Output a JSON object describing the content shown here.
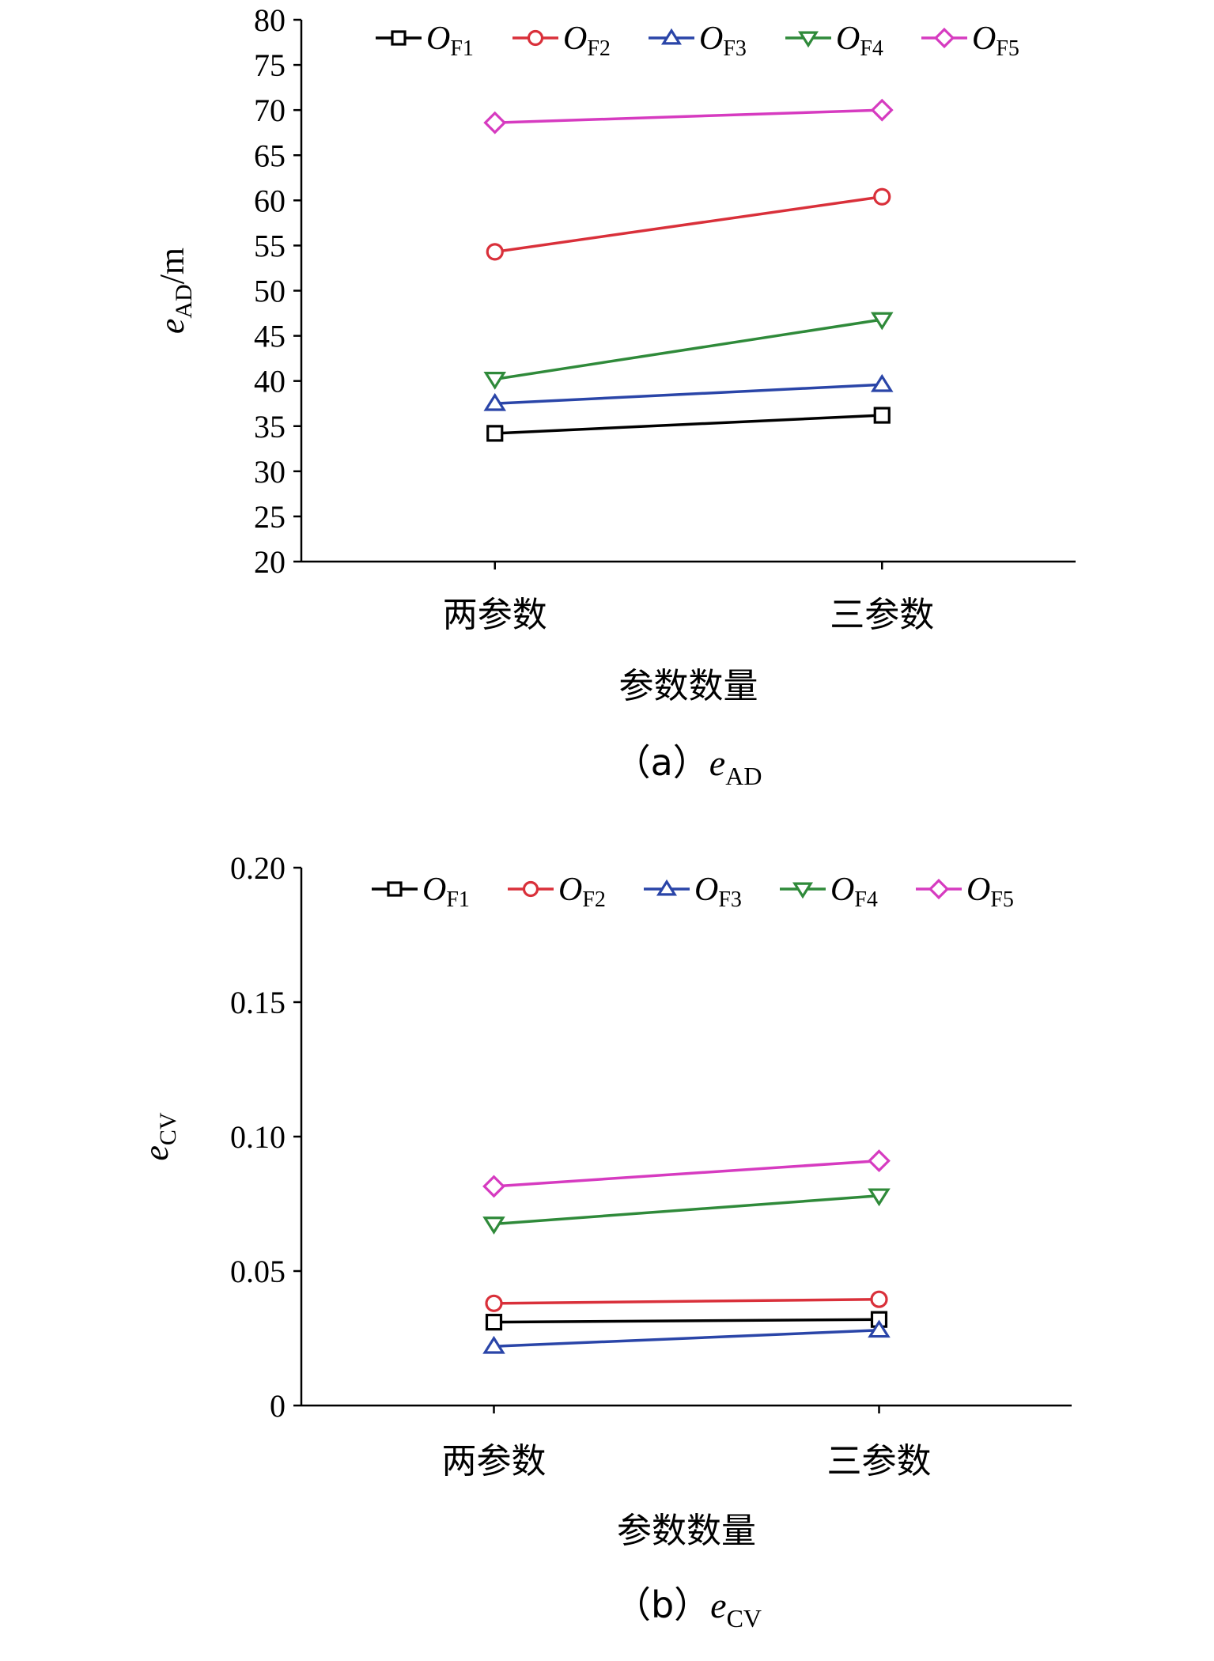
{
  "chart_data": [
    {
      "id": "a",
      "type": "line",
      "caption": {
        "open": "（a）",
        "var": "e",
        "sub": "AD"
      },
      "ylabel": {
        "var": "e",
        "sub": "AD",
        "unit": "/m"
      },
      "xlabel": "参数数量",
      "categories": [
        "两参数",
        "三参数"
      ],
      "ylim": [
        20,
        80
      ],
      "yticks": [
        "20",
        "25",
        "30",
        "35",
        "40",
        "45",
        "50",
        "55",
        "60",
        "65",
        "70",
        "75",
        "80"
      ],
      "legend_position": "top",
      "grid": false,
      "series": [
        {
          "name_var": "O",
          "name_sub": "F1",
          "color": "#000000",
          "marker": "square",
          "values": [
            34.2,
            36.2
          ]
        },
        {
          "name_var": "O",
          "name_sub": "F2",
          "color": "#d9303a",
          "marker": "circle",
          "values": [
            54.3,
            60.4
          ]
        },
        {
          "name_var": "O",
          "name_sub": "F3",
          "color": "#2a45a8",
          "marker": "triangle-up",
          "values": [
            37.5,
            39.6
          ]
        },
        {
          "name_var": "O",
          "name_sub": "F4",
          "color": "#2f8a3a",
          "marker": "triangle-down",
          "values": [
            40.2,
            46.8
          ]
        },
        {
          "name_var": "O",
          "name_sub": "F5",
          "color": "#d63bc0",
          "marker": "diamond",
          "values": [
            68.6,
            70.0
          ]
        }
      ]
    },
    {
      "id": "b",
      "type": "line",
      "caption": {
        "open": "（b）",
        "var": "e",
        "sub": "CV"
      },
      "ylabel": {
        "var": "e",
        "sub": "CV",
        "unit": ""
      },
      "xlabel": "参数数量",
      "categories": [
        "两参数",
        "三参数"
      ],
      "ylim": [
        0,
        0.2
      ],
      "yticks": [
        "0",
        "0.05",
        "0.10",
        "0.15",
        "0.20"
      ],
      "legend_position": "top",
      "grid": false,
      "series": [
        {
          "name_var": "O",
          "name_sub": "F1",
          "color": "#000000",
          "marker": "square",
          "values": [
            0.031,
            0.032
          ]
        },
        {
          "name_var": "O",
          "name_sub": "F2",
          "color": "#d9303a",
          "marker": "circle",
          "values": [
            0.038,
            0.0395
          ]
        },
        {
          "name_var": "O",
          "name_sub": "F3",
          "color": "#2a45a8",
          "marker": "triangle-up",
          "values": [
            0.022,
            0.028
          ]
        },
        {
          "name_var": "O",
          "name_sub": "F4",
          "color": "#2f8a3a",
          "marker": "triangle-down",
          "values": [
            0.0675,
            0.078
          ]
        },
        {
          "name_var": "O",
          "name_sub": "F5",
          "color": "#d63bc0",
          "marker": "diamond",
          "values": [
            0.0815,
            0.091
          ]
        }
      ]
    }
  ]
}
